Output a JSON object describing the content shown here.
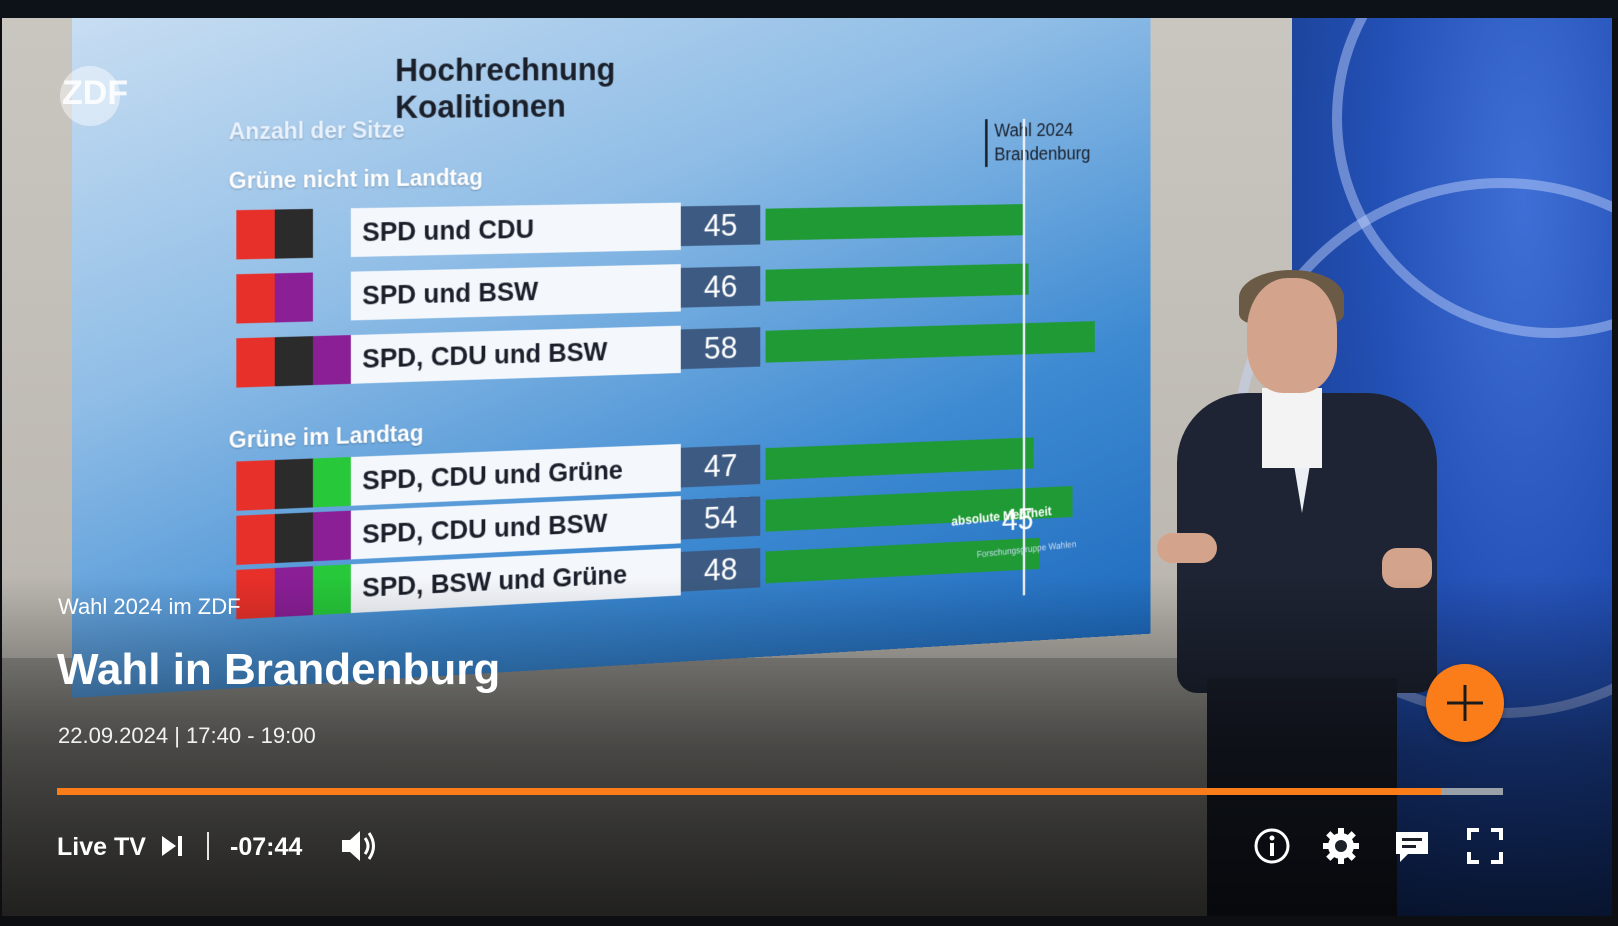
{
  "screen": {
    "title_line1": "Hochrechnung",
    "title_line2": "Koalitionen",
    "seats_label": "Anzahl der Sitze",
    "badge_line1": "Wahl 2024",
    "badge_line2": "Brandenburg",
    "group1_label": "Grüne nicht im Landtag",
    "group2_label": "Grüne im Landtag",
    "majority_label": "absolute Mehrheit",
    "majority_value": "45",
    "source": "Forschungsgruppe Wahlen",
    "logo": "ZDF"
  },
  "chart_data": {
    "type": "bar",
    "title": "Hochrechnung Koalitionen",
    "ylabel": "Anzahl der Sitze",
    "reference_line": {
      "label": "absolute Mehrheit",
      "value": 45
    },
    "groups": [
      {
        "name": "Grüne nicht im Landtag",
        "rows": [
          {
            "label": "SPD und CDU",
            "value": 45,
            "colors": [
              "#e8302a",
              "#2b2b2b"
            ]
          },
          {
            "label": "SPD und BSW",
            "value": 46,
            "colors": [
              "#e8302a",
              "#8a1f96"
            ]
          },
          {
            "label": "SPD, CDU und BSW",
            "value": 58,
            "colors": [
              "#e8302a",
              "#2b2b2b",
              "#8a1f96"
            ]
          }
        ]
      },
      {
        "name": "Grüne im Landtag",
        "rows": [
          {
            "label": "SPD, CDU und Grüne",
            "value": 47,
            "colors": [
              "#e8302a",
              "#2b2b2b",
              "#27c83a"
            ]
          },
          {
            "label": "SPD, CDU und BSW",
            "value": 54,
            "colors": [
              "#e8302a",
              "#2b2b2b",
              "#8a1f96"
            ]
          },
          {
            "label": "SPD, BSW und Grüne",
            "value": 48,
            "colors": [
              "#e8302a",
              "#8a1f96",
              "#27c83a"
            ]
          }
        ]
      }
    ],
    "bar_color": "#1f9a35",
    "value_box_color": "#3d5b82"
  },
  "overlay": {
    "subtitle": "Wahl 2024 im ZDF",
    "title": "Wahl in Brandenburg",
    "datetime": "22.09.2024 | 17:40 - 19:00"
  },
  "player": {
    "progress": 0.957,
    "accent_color": "#fa7d19",
    "live_label": "Live TV",
    "time_remaining": "-07:44",
    "icons": {
      "live": "skip-to-live-icon",
      "volume": "volume-icon",
      "info": "info-icon",
      "settings": "settings-icon",
      "subtitles": "subtitles-icon",
      "fullscreen": "fullscreen-icon",
      "add": "plus-icon"
    }
  }
}
